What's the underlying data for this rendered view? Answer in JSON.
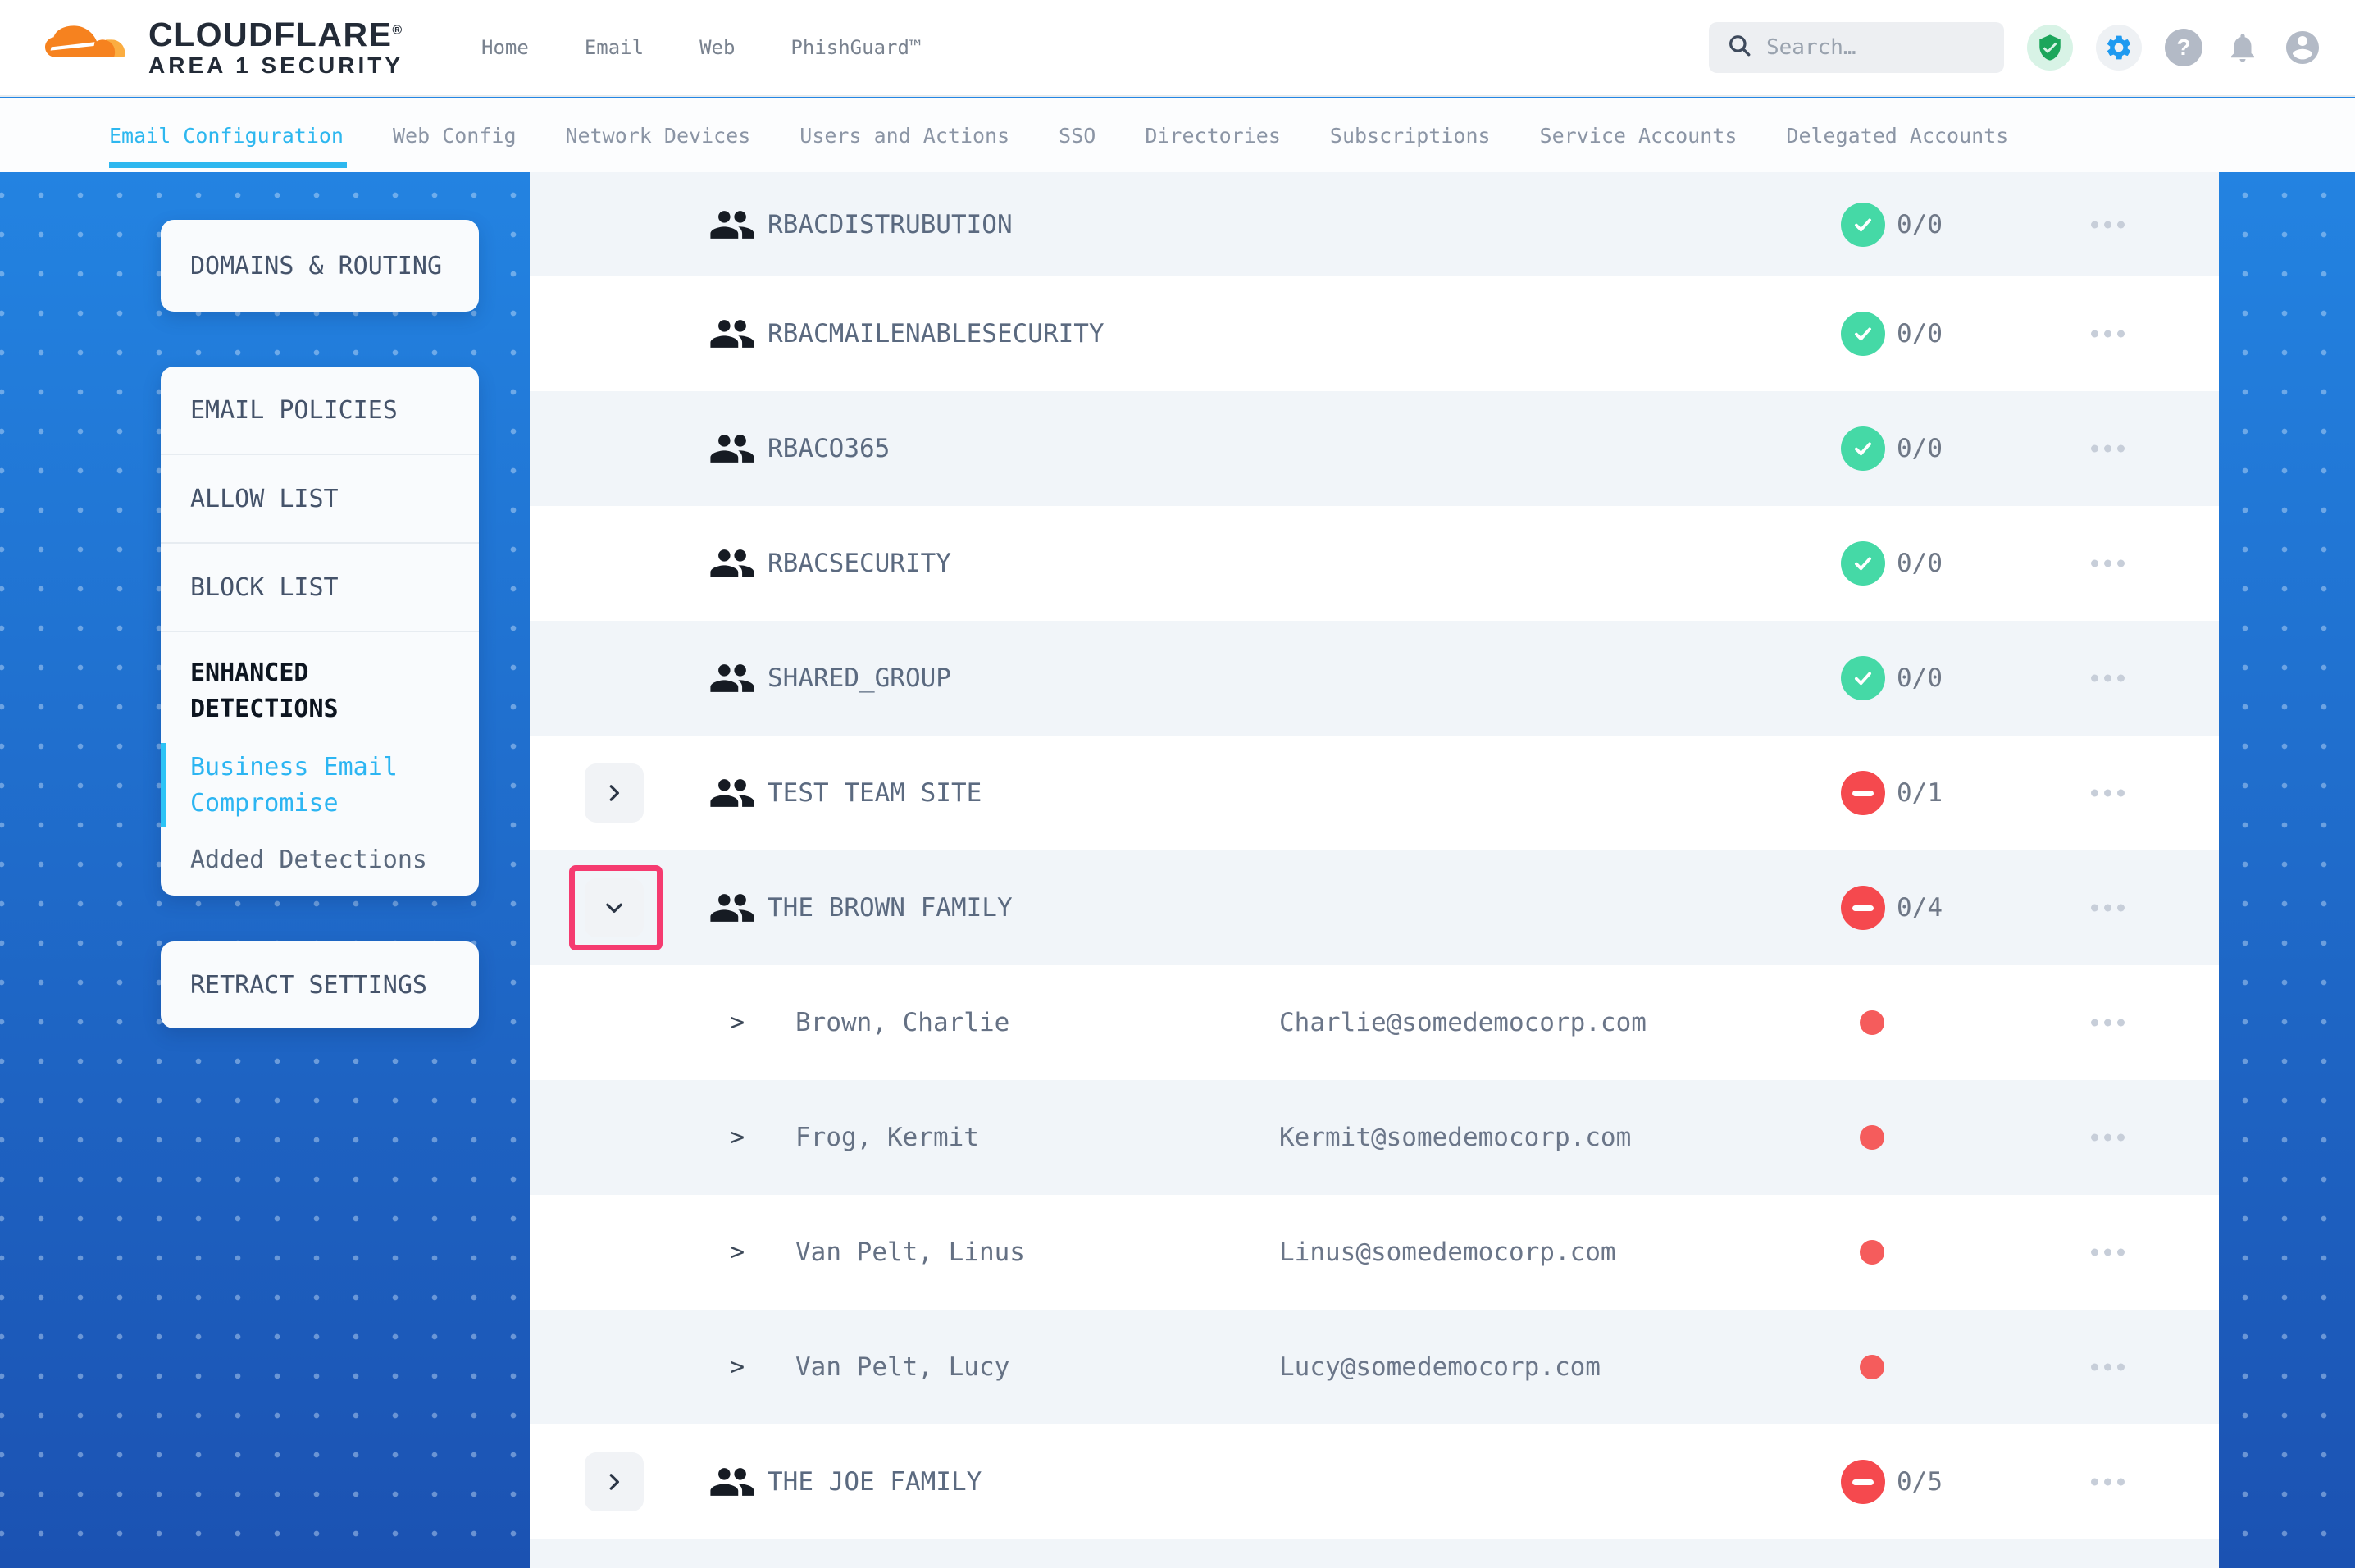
{
  "header": {
    "logo_line1": "CLOUDFLARE",
    "logo_mark": "®",
    "logo_line2": "AREA 1 SECURITY",
    "nav": [
      {
        "label": "Home"
      },
      {
        "label": "Email"
      },
      {
        "label": "Web"
      },
      {
        "label": "PhishGuard™"
      }
    ],
    "search_placeholder": "Search…"
  },
  "tabs": [
    {
      "label": "Email Configuration",
      "active": true
    },
    {
      "label": "Web Config",
      "active": false
    },
    {
      "label": "Network Devices",
      "active": false
    },
    {
      "label": "Users and Actions",
      "active": false
    },
    {
      "label": "SSO",
      "active": false
    },
    {
      "label": "Directories",
      "active": false
    },
    {
      "label": "Subscriptions",
      "active": false
    },
    {
      "label": "Service Accounts",
      "active": false
    },
    {
      "label": "Delegated Accounts",
      "active": false
    }
  ],
  "sidebar": {
    "card_domains": "DOMAINS & ROUTING",
    "policy_items": [
      {
        "label": "EMAIL POLICIES"
      },
      {
        "label": "ALLOW LIST"
      },
      {
        "label": "BLOCK LIST"
      }
    ],
    "enhanced_heading": "ENHANCED DETECTIONS",
    "enhanced_items": [
      {
        "label": "Business Email Compromise",
        "active": true
      },
      {
        "label": "Added Detections",
        "active": false
      }
    ],
    "card_retract": "RETRACT SETTINGS"
  },
  "directory": {
    "rows": [
      {
        "kind": "group",
        "name": "RBACDISTRUBUTION",
        "count": "0/0",
        "status": "ok",
        "expandable": false,
        "expanded": false,
        "highlighted": false
      },
      {
        "kind": "group",
        "name": "RBACMAILENABLESECURITY",
        "count": "0/0",
        "status": "ok",
        "expandable": false,
        "expanded": false,
        "highlighted": false
      },
      {
        "kind": "group",
        "name": "RBACO365",
        "count": "0/0",
        "status": "ok",
        "expandable": false,
        "expanded": false,
        "highlighted": false
      },
      {
        "kind": "group",
        "name": "RBACSECURITY",
        "count": "0/0",
        "status": "ok",
        "expandable": false,
        "expanded": false,
        "highlighted": false
      },
      {
        "kind": "group",
        "name": "SHARED_GROUP",
        "count": "0/0",
        "status": "ok",
        "expandable": false,
        "expanded": false,
        "highlighted": false
      },
      {
        "kind": "group",
        "name": "TEST TEAM SITE",
        "count": "0/1",
        "status": "blocked",
        "expandable": true,
        "expanded": false,
        "highlighted": false
      },
      {
        "kind": "group",
        "name": "THE BROWN FAMILY",
        "count": "0/4",
        "status": "blocked",
        "expandable": true,
        "expanded": true,
        "highlighted": true
      },
      {
        "kind": "member",
        "name": "Brown, Charlie",
        "email": "Charlie@somedemocorp.com",
        "status": "blocked"
      },
      {
        "kind": "member",
        "name": "Frog, Kermit",
        "email": "Kermit@somedemocorp.com",
        "status": "blocked"
      },
      {
        "kind": "member",
        "name": "Van Pelt, Linus",
        "email": "Linus@somedemocorp.com",
        "status": "blocked"
      },
      {
        "kind": "member",
        "name": "Van Pelt, Lucy",
        "email": "Lucy@somedemocorp.com",
        "status": "blocked"
      },
      {
        "kind": "group",
        "name": "THE JOE FAMILY",
        "count": "0/5",
        "status": "blocked",
        "expandable": true,
        "expanded": false,
        "highlighted": false
      }
    ]
  },
  "colors": {
    "accent_blue": "#2db7ef",
    "brand_orange": "#f6821f",
    "ok_green": "#45d9a6",
    "alert_red": "#f5494e",
    "highlight_pink": "#f53b70"
  }
}
